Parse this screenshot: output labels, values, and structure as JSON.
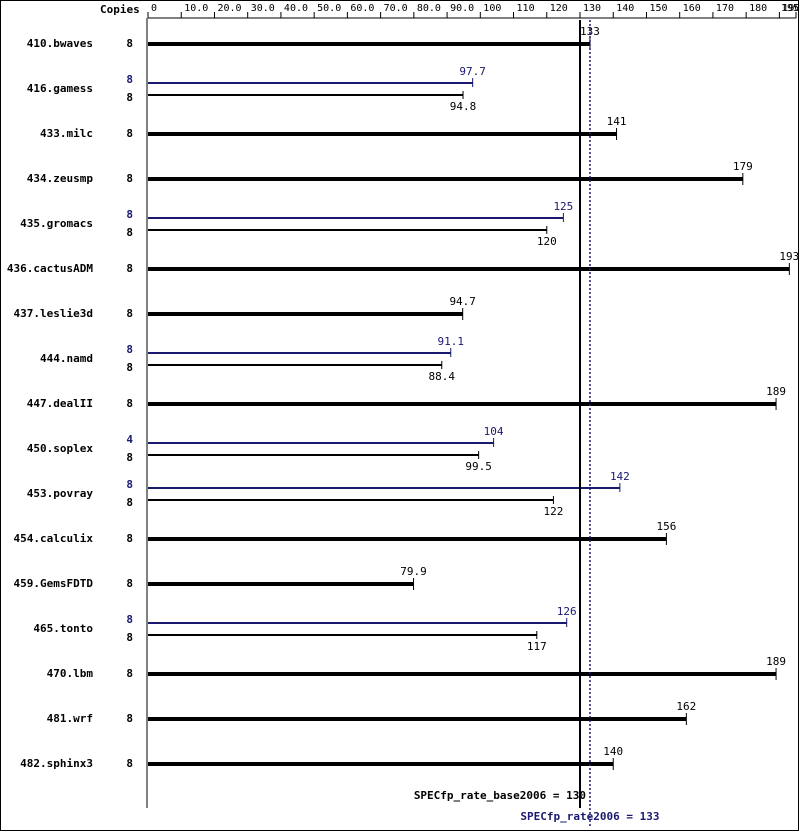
{
  "chart_data": {
    "type": "bar",
    "copies_label": "Copies",
    "categories": [
      "410.bwaves",
      "416.gamess",
      "433.milc",
      "434.zeusmp",
      "435.gromacs",
      "436.cactusADM",
      "437.leslie3d",
      "444.namd",
      "447.dealII",
      "450.soplex",
      "453.povray",
      "454.calculix",
      "459.GemsFDTD",
      "465.tonto",
      "470.lbm",
      "481.wrf",
      "482.sphinx3"
    ],
    "base": {
      "color": "#000000",
      "values": [
        133,
        94.8,
        141,
        179,
        120,
        193,
        94.7,
        88.4,
        189,
        99.5,
        122,
        156,
        79.9,
        117,
        189,
        162,
        140
      ],
      "copies": [
        8,
        8,
        8,
        8,
        8,
        8,
        8,
        8,
        8,
        8,
        8,
        8,
        8,
        8,
        8,
        8,
        8
      ]
    },
    "peak": {
      "color": "#191970",
      "values": [
        null,
        97.7,
        null,
        null,
        125,
        null,
        null,
        91.1,
        null,
        104,
        142,
        null,
        null,
        126,
        null,
        null,
        null
      ],
      "copies": [
        null,
        8,
        null,
        null,
        8,
        null,
        null,
        8,
        null,
        4,
        8,
        null,
        null,
        8,
        null,
        null,
        null
      ]
    },
    "xlim": [
      0,
      195
    ],
    "xticks": [
      0,
      {
        "value": 10,
        "label": "10.0"
      },
      {
        "value": 20,
        "label": "20.0"
      },
      {
        "value": 30,
        "label": "30.0"
      },
      {
        "value": 40,
        "label": "40.0"
      },
      {
        "value": 50,
        "label": "50.0"
      },
      {
        "value": 60,
        "label": "60.0"
      },
      {
        "value": 70,
        "label": "70.0"
      },
      {
        "value": 80,
        "label": "80.0"
      },
      {
        "value": 90,
        "label": "90.0"
      },
      100,
      110,
      120,
      130,
      140,
      150,
      160,
      170,
      180,
      190,
      195
    ],
    "base_summary": {
      "label": "SPECfp_rate_base2006 = 130",
      "value": 130
    },
    "peak_summary": {
      "label": "SPECfp_rate2006 = 133",
      "value": 133
    }
  }
}
